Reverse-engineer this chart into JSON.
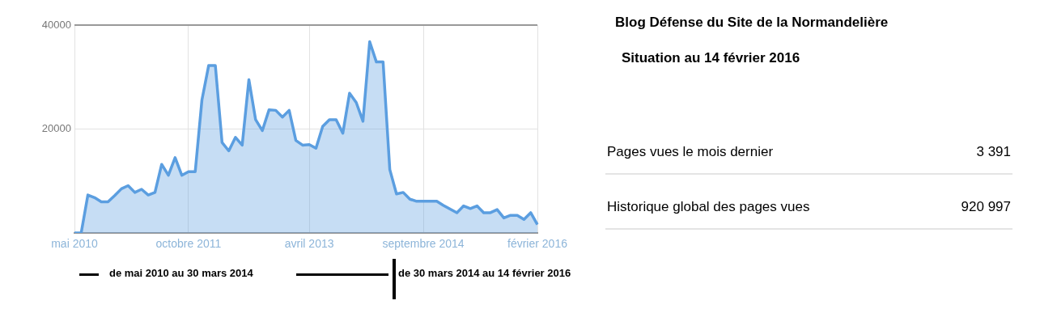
{
  "chart_data": [
    {
      "type": "area",
      "categories": [
        "mai 2010",
        null,
        null,
        null,
        null,
        null,
        null,
        null,
        null,
        null,
        null,
        null,
        null,
        null,
        null,
        null,
        null,
        "octobre 2011",
        null,
        null,
        null,
        null,
        null,
        null,
        null,
        null,
        null,
        null,
        null,
        null,
        null,
        null,
        null,
        null,
        null,
        "avril 2013",
        null,
        null,
        null,
        null,
        null,
        null,
        null,
        null,
        null,
        null,
        null,
        null,
        null,
        null,
        null,
        null,
        "septembre 2014",
        null,
        null,
        null,
        null,
        null,
        null,
        null,
        null,
        null,
        null,
        null,
        null,
        null,
        null,
        null,
        null,
        "février 2016"
      ],
      "series": [
        {
          "color": "#5b9ee0",
          "values": [
            0,
            0,
            7300,
            6800,
            6000,
            6000,
            7200,
            8500,
            9100,
            7800,
            8400,
            7300,
            7800,
            13200,
            11100,
            14500,
            11100,
            11800,
            11800,
            25600,
            32200,
            32200,
            17400,
            15800,
            18400,
            16900,
            29500,
            21800,
            19700,
            23700,
            23600,
            22300,
            23600,
            17800,
            16900,
            17000,
            16300,
            20500,
            21800,
            21800,
            19200,
            26900,
            25100,
            21500,
            36800,
            32900,
            32900,
            12200,
            7500,
            7800,
            6500,
            6100,
            6100,
            6100,
            6100,
            5300,
            4600,
            3900,
            5200,
            4700,
            5200,
            3900,
            3900,
            4500,
            2900,
            3400,
            3400,
            2600,
            3900,
            1600
          ]
        }
      ],
      "ylim": [
        0,
        40000
      ],
      "yticks": [
        20000,
        40000
      ],
      "grid": true,
      "marker": "none",
      "annotations": [
        "de mai 2010 au 30 mars 2014",
        "de 30 mars 2014 au 14 février 2016"
      ]
    },
    {
      "type": "other",
      "title": "Blog Défense du Site de la Normandelière",
      "subtitle": "Situation au 14 février 2016",
      "categories": [
        "Pages vues le mois dernier",
        "Historique global des pages vues"
      ],
      "value_labels": [
        "3 391",
        "920 997"
      ]
    }
  ]
}
